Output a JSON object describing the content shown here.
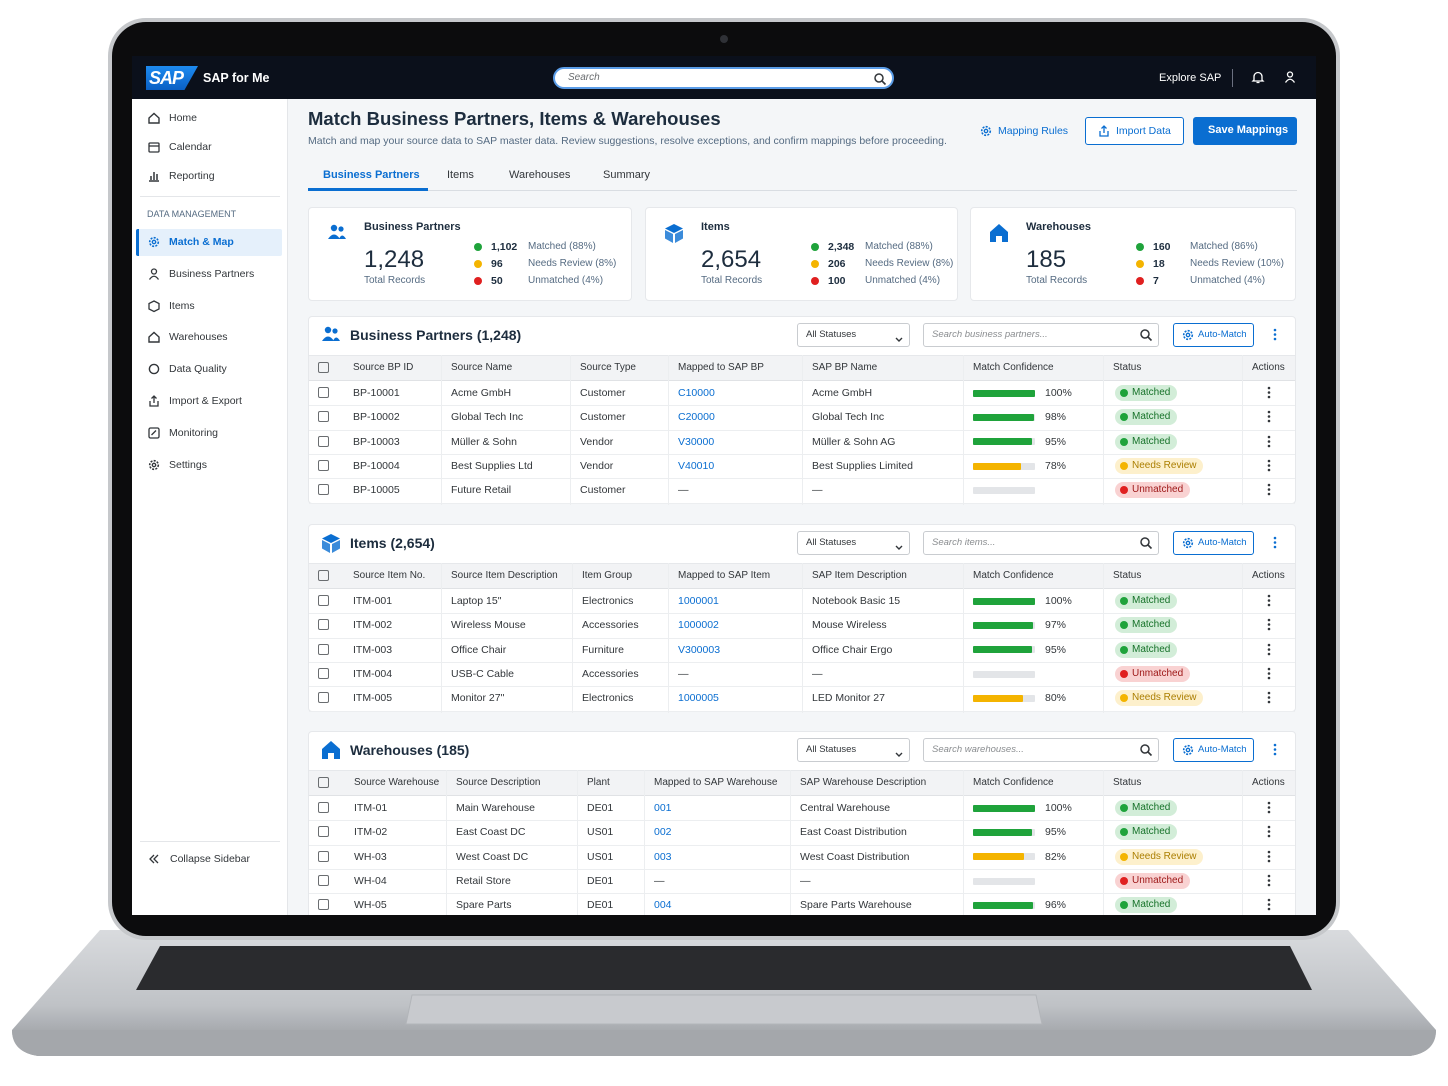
{
  "app": {
    "logo": "SAP",
    "product": "SAP for Me",
    "search": "Search",
    "explore": "Explore SAP"
  },
  "sidebar": {
    "top": [
      {
        "label": "Home"
      },
      {
        "label": "Calendar"
      },
      {
        "label": "Reporting"
      }
    ],
    "section": "DATA MANAGEMENT",
    "items": [
      {
        "label": "Match & Map",
        "active": true
      },
      {
        "label": "Business Partners"
      },
      {
        "label": "Items"
      },
      {
        "label": "Warehouses"
      },
      {
        "label": "Data Quality"
      },
      {
        "label": "Import & Export"
      },
      {
        "label": "Monitoring"
      },
      {
        "label": "Settings"
      }
    ],
    "collapse": "Collapse Sidebar"
  },
  "header": {
    "title": "Match Business Partners, Items & Warehouses",
    "subtitle": "Match and map your source data to SAP master data. Review suggestions, resolve exceptions, and confirm mappings before proceeding.",
    "mapping_rules": "Mapping Rules",
    "import": "Import Data",
    "save": "Save Mappings"
  },
  "tabs": [
    {
      "label": "Business Partners",
      "active": true
    },
    {
      "label": "Items"
    },
    {
      "label": "Warehouses"
    },
    {
      "label": "Summary"
    }
  ],
  "cards": [
    {
      "title": "Business Partners",
      "total": "1,248",
      "total_label": "Total Records",
      "stats": [
        {
          "count": "1,102",
          "label": "Matched (88%)",
          "color": "#1fa33b"
        },
        {
          "count": "96",
          "label": "Needs Review (8%)",
          "color": "#f4b400"
        },
        {
          "count": "50",
          "label": "Unmatched (4%)",
          "color": "#e02020"
        }
      ]
    },
    {
      "title": "Items",
      "total": "2,654",
      "total_label": "Total Records",
      "stats": [
        {
          "count": "2,348",
          "label": "Matched (88%)",
          "color": "#1fa33b"
        },
        {
          "count": "206",
          "label": "Needs Review (8%)",
          "color": "#f4b400"
        },
        {
          "count": "100",
          "label": "Unmatched (4%)",
          "color": "#e02020"
        }
      ]
    },
    {
      "title": "Warehouses",
      "total": "185",
      "total_label": "Total Records",
      "stats": [
        {
          "count": "160",
          "label": "Matched (86%)",
          "color": "#1fa33b"
        },
        {
          "count": "18",
          "label": "Needs Review (10%)",
          "color": "#f4b400"
        },
        {
          "count": "7",
          "label": "Unmatched (4%)",
          "color": "#e02020"
        }
      ]
    }
  ],
  "tables": [
    {
      "title": "Business Partners (1,248)",
      "filter": "All Statuses",
      "search": "Search business partners...",
      "auto": "Auto-Match",
      "columns": [
        "Source BP ID",
        "Source Name",
        "Source Type",
        "Mapped to SAP BP",
        "SAP BP Name",
        "Match Confidence",
        "Status",
        "Actions"
      ],
      "rows": [
        {
          "cells": [
            "BP-10001",
            "Acme GmbH",
            "Customer",
            "C10000",
            "Acme GmbH"
          ],
          "confidence": {
            "value": 100,
            "label": "100%"
          },
          "status": {
            "label": "Matched",
            "color": "#1fa33b"
          }
        },
        {
          "cells": [
            "BP-10002",
            "Global Tech Inc",
            "Customer",
            "C20000",
            "Global Tech Inc"
          ],
          "confidence": {
            "value": 98,
            "label": "98%"
          },
          "status": {
            "label": "Matched",
            "color": "#1fa33b"
          }
        },
        {
          "cells": [
            "BP-10003",
            "Müller & Sohn",
            "Vendor",
            "V30000",
            "Müller & Sohn AG"
          ],
          "confidence": {
            "value": 95,
            "label": "95%"
          },
          "status": {
            "label": "Matched",
            "color": "#1fa33b"
          }
        },
        {
          "cells": [
            "BP-10004",
            "Best Supplies Ltd",
            "Vendor",
            "V40010",
            "Best Supplies Limited"
          ],
          "confidence": {
            "value": 78,
            "label": "78%"
          },
          "status": {
            "label": "Needs Review",
            "color": "#f4b400"
          }
        },
        {
          "cells": [
            "BP-10005",
            "Future Retail",
            "Customer",
            "—",
            "—"
          ],
          "confidence": null,
          "status": {
            "label": "Unmatched",
            "color": "#e02020"
          }
        }
      ]
    },
    {
      "title": "Items (2,654)",
      "filter": "All Statuses",
      "search": "Search items...",
      "auto": "Auto-Match",
      "columns": [
        "Source Item No.",
        "Source Item Description",
        "Item Group",
        "Mapped to SAP Item",
        "SAP Item Description",
        "Match Confidence",
        "Status",
        "Actions"
      ],
      "rows": [
        {
          "cells": [
            "ITM-001",
            "Laptop 15\"",
            "Electronics",
            "1000001",
            "Notebook Basic 15"
          ],
          "confidence": {
            "value": 100,
            "label": "100%"
          },
          "status": {
            "label": "Matched",
            "color": "#1fa33b"
          }
        },
        {
          "cells": [
            "ITM-002",
            "Wireless Mouse",
            "Accessories",
            "1000002",
            "Mouse Wireless"
          ],
          "confidence": {
            "value": 97,
            "label": "97%"
          },
          "status": {
            "label": "Matched",
            "color": "#1fa33b"
          }
        },
        {
          "cells": [
            "ITM-003",
            "Office Chair",
            "Furniture",
            "V300003",
            "Office Chair Ergo"
          ],
          "confidence": {
            "value": 95,
            "label": "95%"
          },
          "status": {
            "label": "Matched",
            "color": "#1fa33b"
          }
        },
        {
          "cells": [
            "ITM-004",
            "USB-C Cable",
            "Accessories",
            "—",
            "—"
          ],
          "confidence": null,
          "status": {
            "label": "Unmatched",
            "color": "#e02020"
          }
        },
        {
          "cells": [
            "ITM-005",
            "Monitor 27\"",
            "Electronics",
            "1000005",
            "LED Monitor 27"
          ],
          "confidence": {
            "value": 80,
            "label": "80%"
          },
          "status": {
            "label": "Needs Review",
            "color": "#f4b400"
          }
        }
      ]
    },
    {
      "title": "Warehouses (185)",
      "filter": "All Statuses",
      "search": "Search warehouses...",
      "auto": "Auto-Match",
      "columns": [
        "Source Warehouse",
        "Source Description",
        "Plant",
        "Mapped to SAP Warehouse",
        "SAP Warehouse Description",
        "Match Confidence",
        "Status",
        "Actions"
      ],
      "rows": [
        {
          "cells": [
            "ITM-01",
            "Main Warehouse",
            "DE01",
            "001",
            "Central Warehouse"
          ],
          "confidence": {
            "value": 100,
            "label": "100%"
          },
          "status": {
            "label": "Matched",
            "color": "#1fa33b"
          }
        },
        {
          "cells": [
            "ITM-02",
            "East Coast DC",
            "US01",
            "002",
            "East Coast Distribution"
          ],
          "confidence": {
            "value": 95,
            "label": "95%"
          },
          "status": {
            "label": "Matched",
            "color": "#1fa33b"
          }
        },
        {
          "cells": [
            "WH-03",
            "West Coast DC",
            "US01",
            "003",
            "West Coast Distribution"
          ],
          "confidence": {
            "value": 82,
            "label": "82%"
          },
          "status": {
            "label": "Needs Review",
            "color": "#f4b400"
          }
        },
        {
          "cells": [
            "WH-04",
            "Retail Store",
            "DE01",
            "—",
            "—"
          ],
          "confidence": null,
          "status": {
            "label": "Unmatched",
            "color": "#e02020"
          }
        },
        {
          "cells": [
            "WH-05",
            "Spare Parts",
            "DE01",
            "004",
            "Spare Parts Warehouse"
          ],
          "confidence": {
            "value": 96,
            "label": "96%"
          },
          "status": {
            "label": "Matched",
            "color": "#1fa33b"
          }
        }
      ]
    }
  ]
}
